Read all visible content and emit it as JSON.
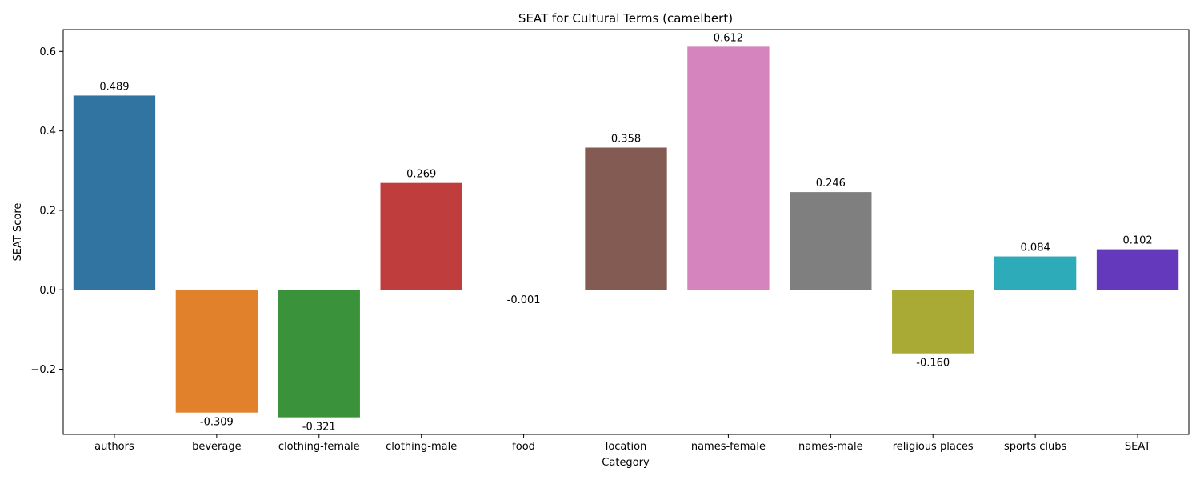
{
  "chart_data": {
    "type": "bar",
    "title": "SEAT for Cultural Terms (camelbert)",
    "xlabel": "Category",
    "ylabel": "SEAT Score",
    "categories": [
      "authors",
      "beverage",
      "clothing-female",
      "clothing-male",
      "food",
      "location",
      "names-female",
      "names-male",
      "religious places",
      "sports clubs",
      "SEAT"
    ],
    "values": [
      0.489,
      -0.309,
      -0.321,
      0.269,
      -0.001,
      0.358,
      0.612,
      0.246,
      -0.16,
      0.084,
      0.102
    ],
    "value_labels": [
      "0.489",
      "-0.309",
      "-0.321",
      "0.269",
      "-0.001",
      "0.358",
      "0.612",
      "0.246",
      "-0.160",
      "0.084",
      "0.102"
    ],
    "colors": [
      "#3274a1",
      "#e1812c",
      "#3a923a",
      "#c03d3e",
      "#9372b2",
      "#845b53",
      "#d684bd",
      "#7f7f7f",
      "#a9aa35",
      "#2eabb8",
      "#6439bb"
    ],
    "ylim": [
      -0.364,
      0.655
    ],
    "yticks": [
      -0.2,
      0.0,
      0.2,
      0.4,
      0.6
    ],
    "ytick_labels": [
      "−0.2",
      "0.0",
      "0.2",
      "0.4",
      "0.6"
    ],
    "grid": false,
    "legend": "none"
  }
}
